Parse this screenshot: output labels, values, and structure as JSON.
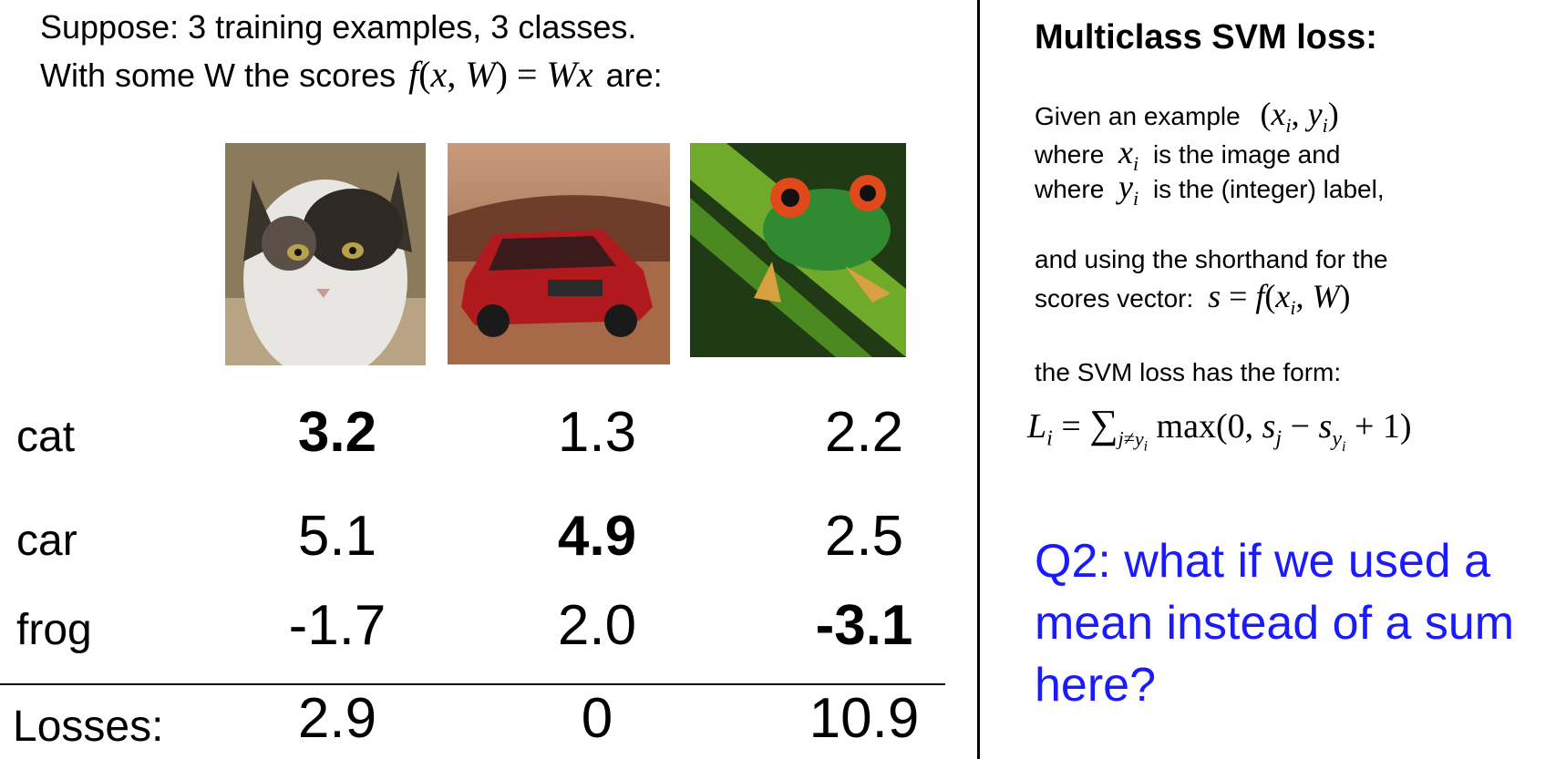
{
  "intro": {
    "line1": "Suppose: 3 training examples, 3 classes.",
    "line2_prefix": "With some W the scores",
    "line2_formula": "f(x, W) = Wx",
    "line2_suffix": "are:"
  },
  "images": [
    {
      "icon": "cat-photo",
      "label": "cat"
    },
    {
      "icon": "car-photo",
      "label": "car"
    },
    {
      "icon": "frog-photo",
      "label": "frog"
    }
  ],
  "table": {
    "rows": [
      {
        "label": "cat",
        "scores": [
          "3.2",
          "1.3",
          "2.2"
        ],
        "bold_index": 0
      },
      {
        "label": "car",
        "scores": [
          "5.1",
          "4.9",
          "2.5"
        ],
        "bold_index": 1
      },
      {
        "label": "frog",
        "scores": [
          "-1.7",
          "2.0",
          "-3.1"
        ],
        "bold_index": 2
      }
    ],
    "losses_label": "Losses:",
    "losses": [
      "2.9",
      "0",
      "10.9"
    ]
  },
  "right": {
    "title": "Multiclass SVM loss:",
    "given_prefix": "Given an example",
    "given_math": "(x_i, y_i)",
    "where1_prefix": "where",
    "where1_math": "x_i",
    "where1_suffix": "is the image and",
    "where2_prefix": "where",
    "where2_math": "y_i",
    "where2_suffix": "is the (integer) label,",
    "shorthand_line1": "and using the shorthand for the",
    "shorthand_line2_prefix": "scores vector:",
    "shorthand_math": "s = f(x_i, W)",
    "form_text": "the SVM loss has the form:",
    "formula": "L_i = Σ_{j≠y_i} max(0, s_j − s_{y_i} + 1)",
    "question": "Q2: what if we used a mean instead of a sum here?",
    "question_color": "#1a1aff"
  }
}
